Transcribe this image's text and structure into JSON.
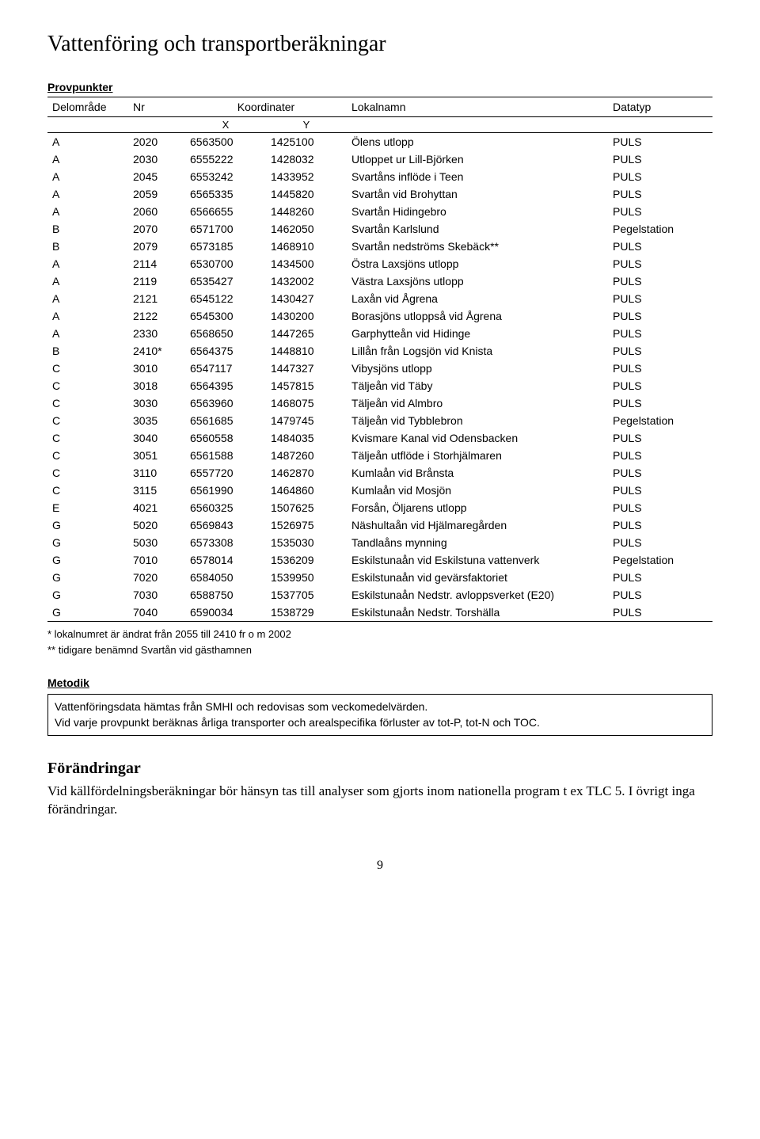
{
  "title": "Vattenföring och transportberäkningar",
  "provpunkter_label": "Provpunkter",
  "table": {
    "headers": {
      "area": "Delområde",
      "nr": "Nr",
      "koord": "Koordinater",
      "x": "X",
      "y": "Y",
      "name": "Lokalnamn",
      "type": "Datatyp"
    },
    "rows": [
      {
        "a": "A",
        "nr": "2020",
        "x": "6563500",
        "y": "1425100",
        "name": "Ölens utlopp",
        "type": "PULS"
      },
      {
        "a": "A",
        "nr": "2030",
        "x": "6555222",
        "y": "1428032",
        "name": "Utloppet ur Lill-Björken",
        "type": "PULS"
      },
      {
        "a": "A",
        "nr": "2045",
        "x": "6553242",
        "y": "1433952",
        "name": "Svartåns inflöde i Teen",
        "type": "PULS"
      },
      {
        "a": "A",
        "nr": "2059",
        "x": "6565335",
        "y": "1445820",
        "name": "Svartån vid Brohyttan",
        "type": "PULS"
      },
      {
        "a": "A",
        "nr": "2060",
        "x": "6566655",
        "y": "1448260",
        "name": "Svartån Hidingebro",
        "type": "PULS"
      },
      {
        "a": "B",
        "nr": "2070",
        "x": "6571700",
        "y": "1462050",
        "name": "Svartån Karlslund",
        "type": "Pegelstation"
      },
      {
        "a": "B",
        "nr": "2079",
        "x": "6573185",
        "y": "1468910",
        "name": "Svartån nedströms Skebäck**",
        "type": "PULS"
      },
      {
        "a": "A",
        "nr": "2114",
        "x": "6530700",
        "y": "1434500",
        "name": "Östra Laxsjöns utlopp",
        "type": "PULS"
      },
      {
        "a": "A",
        "nr": "2119",
        "x": "6535427",
        "y": "1432002",
        "name": "Västra Laxsjöns utlopp",
        "type": "PULS"
      },
      {
        "a": "A",
        "nr": "2121",
        "x": "6545122",
        "y": "1430427",
        "name": "Laxån vid Ågrena",
        "type": "PULS"
      },
      {
        "a": "A",
        "nr": "2122",
        "x": "6545300",
        "y": "1430200",
        "name": "Borasjöns utloppså vid Ågrena",
        "type": "PULS"
      },
      {
        "a": "A",
        "nr": "2330",
        "x": "6568650",
        "y": "1447265",
        "name": "Garphytteån vid Hidinge",
        "type": "PULS"
      },
      {
        "a": "B",
        "nr": "2410*",
        "x": "6564375",
        "y": "1448810",
        "name": "Lillån från Logsjön vid Knista",
        "type": "PULS"
      },
      {
        "a": "C",
        "nr": "3010",
        "x": "6547117",
        "y": "1447327",
        "name": "Vibysjöns utlopp",
        "type": "PULS"
      },
      {
        "a": "C",
        "nr": "3018",
        "x": "6564395",
        "y": "1457815",
        "name": "Täljeån vid Täby",
        "type": "PULS"
      },
      {
        "a": "C",
        "nr": "3030",
        "x": "6563960",
        "y": "1468075",
        "name": "Täljeån vid Almbro",
        "type": "PULS"
      },
      {
        "a": "C",
        "nr": "3035",
        "x": "6561685",
        "y": "1479745",
        "name": "Täljeån vid Tybblebron",
        "type": "Pegelstation"
      },
      {
        "a": "C",
        "nr": "3040",
        "x": "6560558",
        "y": "1484035",
        "name": "Kvismare Kanal vid Odensbacken",
        "type": "PULS"
      },
      {
        "a": "C",
        "nr": "3051",
        "x": "6561588",
        "y": "1487260",
        "name": "Täljeån utflöde i Storhjälmaren",
        "type": "PULS"
      },
      {
        "a": "C",
        "nr": "3110",
        "x": "6557720",
        "y": "1462870",
        "name": "Kumlaån vid Brånsta",
        "type": "PULS"
      },
      {
        "a": "C",
        "nr": "3115",
        "x": "6561990",
        "y": "1464860",
        "name": "Kumlaån vid Mosjön",
        "type": "PULS"
      },
      {
        "a": "E",
        "nr": "4021",
        "x": "6560325",
        "y": "1507625",
        "name": "Forsån, Öljarens utlopp",
        "type": "PULS"
      },
      {
        "a": "G",
        "nr": "5020",
        "x": "6569843",
        "y": "1526975",
        "name": "Näshultaån vid Hjälmaregården",
        "type": "PULS"
      },
      {
        "a": "G",
        "nr": "5030",
        "x": "6573308",
        "y": "1535030",
        "name": "Tandlaåns mynning",
        "type": "PULS"
      },
      {
        "a": "G",
        "nr": "7010",
        "x": "6578014",
        "y": "1536209",
        "name": "Eskilstunaån vid Eskilstuna vattenverk",
        "type": "Pegelstation"
      },
      {
        "a": "G",
        "nr": "7020",
        "x": "6584050",
        "y": "1539950",
        "name": "Eskilstunaån vid gevärsfaktoriet",
        "type": "PULS"
      },
      {
        "a": "G",
        "nr": "7030",
        "x": "6588750",
        "y": "1537705",
        "name": "Eskilstunaån Nedstr. avloppsverket (E20)",
        "type": "PULS"
      },
      {
        "a": "G",
        "nr": "7040",
        "x": "6590034",
        "y": "1538729",
        "name": "Eskilstunaån Nedstr. Torshälla",
        "type": "PULS"
      }
    ]
  },
  "footnote1": "* lokalnumret är ändrat från 2055 till 2410 fr o m 2002",
  "footnote2": "** tidigare benämnd Svartån vid gästhamnen",
  "metodik_label": "Metodik",
  "metodik_line1": "Vattenföringsdata hämtas från SMHI och redovisas som veckomedelvärden.",
  "metodik_line2": "Vid varje provpunkt beräknas årliga transporter och arealspecifika förluster av tot-P, tot-N och TOC.",
  "forandringar_heading": "Förändringar",
  "forandringar_body": "Vid källfördelningsberäkningar bör hänsyn tas till analyser som gjorts inom nationella program t ex TLC 5. I övrigt inga förändringar.",
  "page_number": "9"
}
